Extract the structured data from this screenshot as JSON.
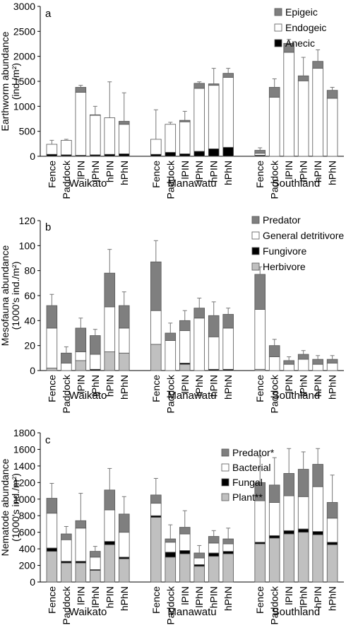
{
  "colors": {
    "Epigeic": "#7f7f7f",
    "Endogeic": "#ffffff",
    "Anecic": "#000000",
    "Predator": "#7f7f7f",
    "General detritivore": "#ffffff",
    "Fungivore": "#000000",
    "Herbivore": "#c0c0c0",
    "Predator*": "#7f7f7f",
    "Bacterial": "#ffffff",
    "Fungal": "#000000",
    "Plant**": "#c0c0c0"
  },
  "chart_data": [
    {
      "type": "bar",
      "stacked": true,
      "panel_label": "a",
      "ylabel": [
        "Earthworm abundance",
        "(ind./m²)"
      ],
      "ylim": [
        0,
        3000
      ],
      "yticks": [
        0,
        500,
        1000,
        1500,
        2000,
        2500,
        3000
      ],
      "groups": [
        {
          "name": "Waikato",
          "categories": [
            "Fence",
            "Paddock"
          ]
        },
        {
          "name": "Manawatu",
          "categories": [
            "Fence",
            "Paddock",
            "lPIN",
            "lPhN",
            "hPIN",
            "hPhN"
          ]
        },
        {
          "name": "Southland",
          "categories": [
            "Fence",
            "Paddock",
            "lPIN",
            "lPhN",
            "hPIN",
            "hPhN"
          ]
        }
      ],
      "waikato_extra_categories": [
        "lPIN",
        "lPhN",
        "hPIN",
        "hPhN"
      ],
      "legend": [
        "Epigeic",
        "Endogeic",
        "Anecic"
      ],
      "series": [
        {
          "name": "Anecic",
          "values": [
            40,
            30,
            20,
            30,
            40,
            50,
            40,
            80,
            50,
            100,
            150,
            180,
            20,
            0,
            0,
            0,
            0,
            0
          ]
        },
        {
          "name": "Endogeic",
          "values": [
            200,
            290,
            1260,
            790,
            730,
            590,
            300,
            560,
            640,
            1260,
            1270,
            1400,
            40,
            1180,
            2080,
            1510,
            1760,
            1160
          ]
        },
        {
          "name": "Epigeic",
          "values": [
            0,
            0,
            100,
            10,
            0,
            60,
            0,
            0,
            30,
            100,
            30,
            80,
            60,
            200,
            180,
            100,
            140,
            160
          ]
        }
      ],
      "error_top": [
        320,
        340,
        1420,
        1000,
        1490,
        1270,
        930,
        680,
        900,
        1490,
        1760,
        1760,
        170,
        1550,
        2340,
        1980,
        2130,
        1380
      ]
    },
    {
      "type": "bar",
      "stacked": true,
      "panel_label": "b",
      "ylabel": [
        "Mesofauna abundance",
        "(1000's ind./m²)"
      ],
      "ylim": [
        0,
        120
      ],
      "yticks": [
        0,
        20,
        40,
        60,
        80,
        100,
        120
      ],
      "groups": [
        {
          "name": "Waikato",
          "categories": [
            "Fence",
            "Paddock",
            "lPIN",
            "lPhN",
            "hPIN",
            "hPhN"
          ]
        },
        {
          "name": "Manawatu",
          "categories": [
            "Fence",
            "Paddock",
            "lPIN",
            "lPhN",
            "hPIN",
            "hPhN"
          ]
        },
        {
          "name": "Southland",
          "categories": [
            "Fence",
            "Paddock",
            "lPIN",
            "lPhN",
            "hPIN",
            "hPhN"
          ]
        }
      ],
      "legend": [
        "Predator",
        "General detritivore",
        "Fungivore",
        "Herbivore"
      ],
      "series": [
        {
          "name": "Herbivore",
          "values": [
            2,
            0,
            8,
            0,
            15,
            14,
            21,
            0,
            5,
            0,
            0,
            0,
            1,
            0,
            0,
            0,
            0,
            0
          ]
        },
        {
          "name": "Fungivore",
          "values": [
            0,
            0,
            0,
            1,
            0,
            0,
            0,
            0,
            1,
            0,
            1,
            1,
            0,
            0,
            0,
            0,
            0,
            0
          ]
        },
        {
          "name": "General detritivore",
          "values": [
            32,
            6,
            7,
            12,
            36,
            20,
            27,
            24,
            26,
            42,
            26,
            33,
            48,
            11,
            5,
            9,
            5,
            6
          ]
        },
        {
          "name": "Predator",
          "values": [
            18,
            8,
            19,
            15,
            27,
            18,
            39,
            6,
            8,
            8,
            17,
            11,
            28,
            9,
            3,
            4,
            4,
            3
          ]
        }
      ],
      "error_top": [
        61,
        19,
        42,
        33,
        97,
        63,
        104,
        38,
        48,
        58,
        55,
        50,
        83,
        25,
        11,
        16,
        12,
        12
      ]
    },
    {
      "type": "bar",
      "stacked": true,
      "panel_label": "c",
      "ylabel": [
        "Nematode abundance",
        "(1000's ind./m²)"
      ],
      "ylim": [
        0,
        1800
      ],
      "yticks": [
        0,
        200,
        400,
        600,
        800,
        1000,
        1200,
        1400,
        1600,
        1800
      ],
      "groups": [
        {
          "name": "Waikato",
          "categories": [
            "Fence",
            "Paddock",
            "lPIN",
            "lPhN",
            "hPIN",
            "hPhN"
          ]
        },
        {
          "name": "Manawatu",
          "categories": [
            "Fence",
            "Paddock",
            "lPIN",
            "lPhN",
            "hPIN",
            "hPhN"
          ]
        },
        {
          "name": "Southland",
          "categories": [
            "Fence",
            "Paddock",
            "lPIN",
            "lPhN",
            "hPIN",
            "hPhN"
          ]
        }
      ],
      "legend": [
        "Predator*",
        "Bacterial",
        "Fungal",
        "Plant**"
      ],
      "series": [
        {
          "name": "Plant**",
          "values": [
            370,
            230,
            230,
            140,
            450,
            280,
            780,
            300,
            340,
            190,
            310,
            340,
            460,
            530,
            580,
            600,
            570,
            450
          ]
        },
        {
          "name": "Fungal",
          "values": [
            40,
            20,
            20,
            10,
            40,
            20,
            20,
            60,
            40,
            20,
            40,
            30,
            20,
            30,
            40,
            40,
            40,
            30
          ]
        },
        {
          "name": "Bacterial",
          "values": [
            420,
            260,
            400,
            150,
            380,
            300,
            150,
            120,
            200,
            80,
            120,
            90,
            500,
            400,
            420,
            390,
            540,
            290
          ]
        },
        {
          "name": "Predator*",
          "values": [
            180,
            70,
            90,
            70,
            240,
            220,
            100,
            40,
            80,
            60,
            80,
            60,
            220,
            210,
            270,
            330,
            270,
            190
          ]
        }
      ],
      "error_top": [
        1190,
        670,
        1070,
        430,
        1370,
        1030,
        1250,
        690,
        860,
        440,
        620,
        650,
        1510,
        1500,
        1610,
        1570,
        1610,
        1290
      ]
    }
  ]
}
